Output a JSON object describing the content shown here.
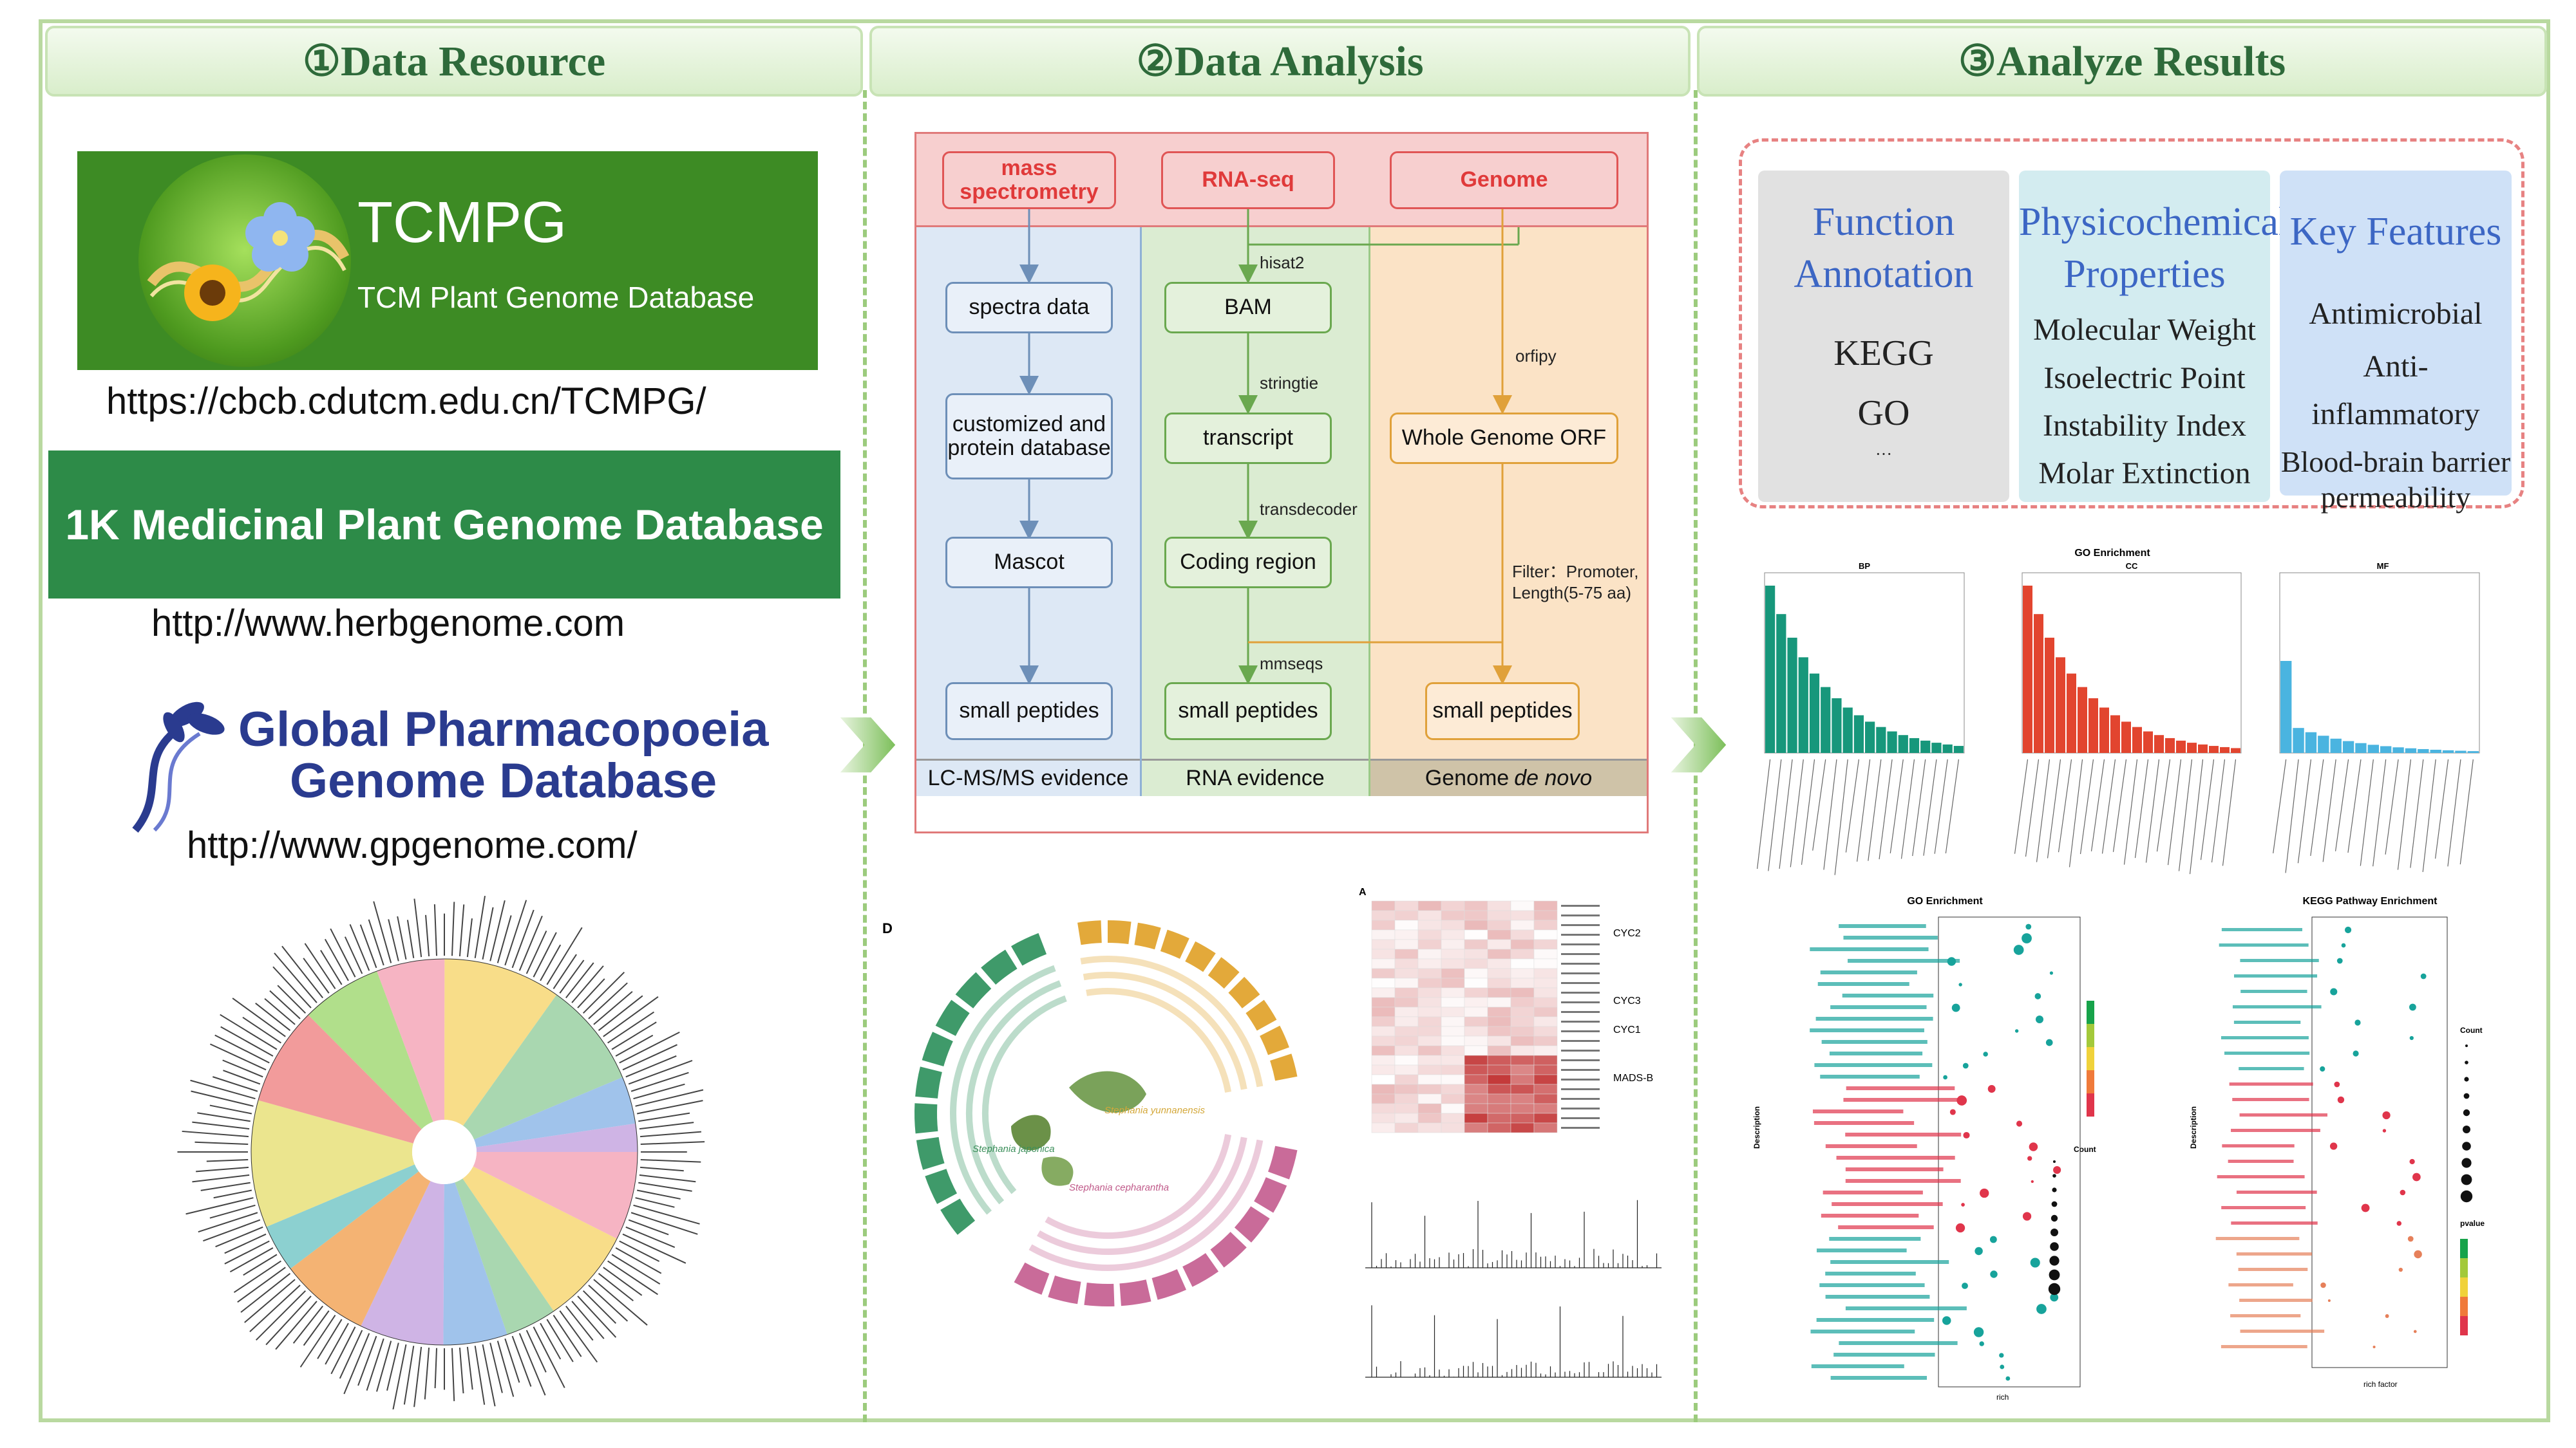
{
  "headers": [
    "①Data Resource",
    "②Data Analysis",
    "③Analyze Results"
  ],
  "resources": {
    "tcmpg_title": "TCMPG",
    "tcmpg_subtitle": "TCM Plant Genome Database",
    "tcmpg_url": "https://cbcb.cdutcm.edu.cn/TCMPG/",
    "mp_title": "1K Medicinal Plant Genome Database",
    "mp_url": "http://www.herbgenome.com",
    "gpgd_line1": "Global Pharmacopoeia",
    "gpgd_line2": "Genome Database",
    "gpgd_url": "http://www.gpgenome.com/"
  },
  "flow": {
    "top": [
      "mass spectrometry",
      "RNA-seq",
      "Genome"
    ],
    "lane1": [
      "spectra data",
      "customized and protein database",
      "Mascot",
      "small peptides"
    ],
    "lane2": [
      "BAM",
      "transcript",
      "Coding region",
      "small peptides"
    ],
    "lane3": [
      "Whole Genome ORF",
      "small peptides"
    ],
    "edges": {
      "hisat2": "hisat2",
      "stringtie": "stringtie",
      "transdecoder": "transdecoder",
      "mmseqs": "mmseqs",
      "orfipy": "orfipy",
      "filter1": "Filter：Promoter,",
      "filter2": "Length(5-75 aa)"
    },
    "footers": [
      "LC-MS/MS evidence",
      "RNA evidence",
      "Genome "
    ],
    "footer_italic": "de novo"
  },
  "analysis_figs": {
    "circos_label": "D",
    "circos_species": [
      "Stephania yunnanensis",
      "Stephania japonica",
      "Stephania cepharantha"
    ],
    "heat_label": "A",
    "heat_groups": [
      "CYC2",
      "CYC3",
      "CYC1",
      "MADS-B"
    ]
  },
  "results": {
    "function_title": "Function Annotation",
    "function_items": [
      "KEGG",
      "GO",
      "···"
    ],
    "physico_title": "Physicochemical Properties",
    "physico_items": [
      "Molecular Weight",
      "Isoelectric Point",
      "Instability Index",
      "Molar Extinction"
    ],
    "key_title": "Key Features",
    "key_items": [
      "Antimicrobial",
      "Anti-inflammatory",
      "Blood-brain barrier permeability"
    ]
  },
  "mini": {
    "go_bar_title": "GO Enrichment",
    "go_panels": [
      "BP",
      "CC",
      "MF"
    ],
    "go_dot_title": "GO Enrichment",
    "kegg_dot_title": "KEGG Pathway Enrichment",
    "count_label": "Count",
    "desc_label": "Description",
    "x_rich": "rich",
    "x_rich_factor": "rich factor",
    "pvalue": "pvalue"
  },
  "colors": {
    "header_text": "#2e6a3a",
    "tcmpg_bg": "#3d8b24",
    "mp_bg": "#2d8b48",
    "gpgd_text": "#2a3b8f",
    "card_gray": "#e1e1e1",
    "card_teal": "#d3ecf0",
    "card_blue": "#cfe1f7",
    "title_blue": "#3c66c4"
  }
}
